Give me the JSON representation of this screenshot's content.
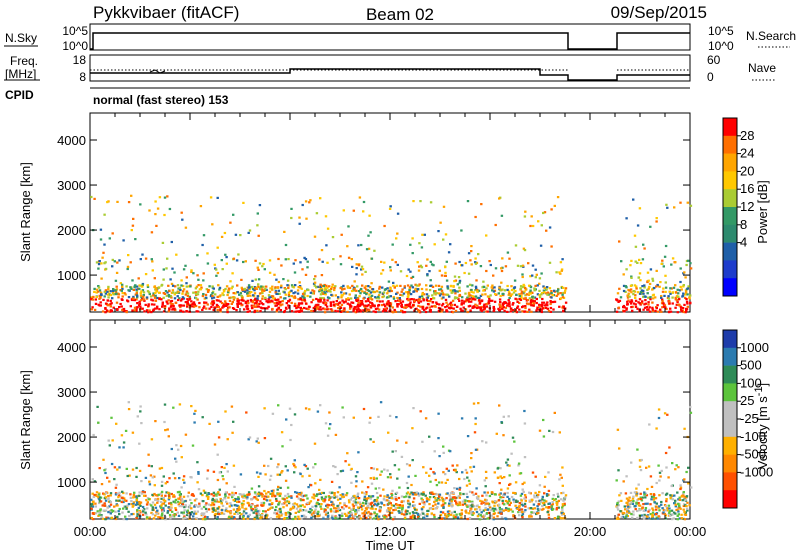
{
  "header": {
    "station": "Pykkvibaer (fitACF)",
    "beam": "Beam 02",
    "date": "09/Sep/2015"
  },
  "status_panel": {
    "nsky_label": "N.Sky",
    "nsky_ticks": [
      "10^5",
      "10^0"
    ],
    "nsearch_label": "N.Search",
    "freq_label_1": "Freq.",
    "freq_label_2": "[MHz]",
    "freq_ticks": [
      "18",
      "8"
    ],
    "nave_label": "Nave",
    "nave_ticks": [
      "60",
      "0"
    ],
    "cpid_label": "CPID",
    "cpid_value": "normal (fast stereo) 153"
  },
  "chart_data": [
    {
      "type": "heatmap",
      "name": "power",
      "ylabel": "Slant Range [km]",
      "xlabel": "",
      "x_range_hours": [
        0,
        24
      ],
      "ylim": [
        180,
        4600
      ],
      "y_ticks": [
        1000,
        2000,
        3000,
        4000
      ],
      "colorbar_label": "Power [dB]",
      "colorbar_ticks": [
        "28",
        "24",
        "20",
        "16",
        "12",
        "8",
        "4"
      ],
      "colorbar_colors": [
        "#ff0000",
        "#ff6f00",
        "#ffa500",
        "#ffc800",
        "#aacc33",
        "#339966",
        "#2d8a6e",
        "#1f5fa8",
        "#1e3ccc",
        "#0000ff"
      ],
      "data_gap_hours": [
        19.0,
        21.0
      ]
    },
    {
      "type": "heatmap",
      "name": "velocity",
      "ylabel": "Slant Range [km]",
      "xlabel": "Time UT",
      "x_range_hours": [
        0,
        24
      ],
      "x_tick_labels": [
        "00:00",
        "04:00",
        "08:00",
        "12:00",
        "16:00",
        "20:00",
        "00:00"
      ],
      "ylim": [
        180,
        4600
      ],
      "y_ticks": [
        1000,
        2000,
        3000,
        4000
      ],
      "colorbar_label_main": "Velocity [m s",
      "colorbar_label_exp": "-1",
      "colorbar_label_end": "]",
      "colorbar_ticks": [
        "1000",
        "500",
        "100",
        "25",
        "-25",
        "-100",
        "-500",
        "-1000"
      ],
      "colorbar_colors": [
        "#1e3caa",
        "#2b7bb0",
        "#2e8b57",
        "#5cc43c",
        "#c0c0c0",
        "#c0c0c0",
        "#ffb000",
        "#ff8800",
        "#ff5000",
        "#ff0000"
      ],
      "data_gap_hours": [
        19.0,
        21.0
      ]
    }
  ]
}
